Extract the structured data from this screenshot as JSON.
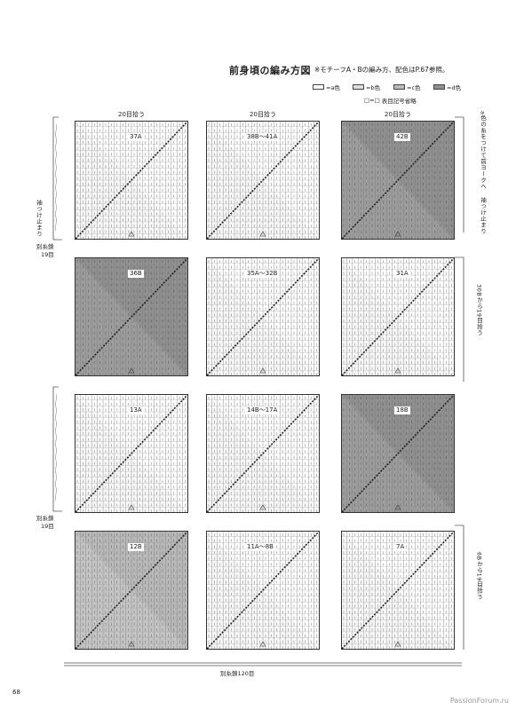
{
  "page": {
    "title": "前身頃の編み方図",
    "note": "※モチーフA・Bの編み方、配色はP.67参照。",
    "page_number": "68",
    "watermark": "PassionForum.ru"
  },
  "legend": [
    {
      "label": "=a色",
      "color": "#ffffff"
    },
    {
      "label": "=b色",
      "color": "#dddddd"
    },
    {
      "label": "=c色",
      "color": "#b9b9b9"
    },
    {
      "label": "=d色",
      "color": "#8f8f8f"
    }
  ],
  "legend2": {
    "symbol": "□=□",
    "label": "表目記号省略"
  },
  "pickup_label": "20目拾う",
  "side_labels": {
    "left_top": "袖つけ止まり",
    "left_chain_top": "別糸鎖",
    "left_chain_top_count": "19目",
    "left_chain_mid": "別糸鎖",
    "left_chain_mid_count": "19目",
    "right_top_1": "a色の糸をつけて前ヨークへ",
    "right_top_2": "袖つけ止まり",
    "right_mid": "30Bから19目拾う",
    "right_bot": "6Bから19目拾う",
    "bottom_chain": "別糸鎖120目"
  },
  "tiles": [
    {
      "label": "37A",
      "shade": "a"
    },
    {
      "label": "38B〜41A",
      "shade": "a"
    },
    {
      "label": "42B",
      "shade": "d"
    },
    {
      "label": "36B",
      "shade": "d"
    },
    {
      "label": "35A〜32B",
      "shade": "a"
    },
    {
      "label": "31A",
      "shade": "a"
    },
    {
      "label": "13A",
      "shade": "a"
    },
    {
      "label": "14B〜17A",
      "shade": "a"
    },
    {
      "label": "18B",
      "shade": "d"
    },
    {
      "label": "12B",
      "shade": "c"
    },
    {
      "label": "11A〜8B",
      "shade": "a"
    },
    {
      "label": "7A",
      "shade": "a"
    }
  ]
}
